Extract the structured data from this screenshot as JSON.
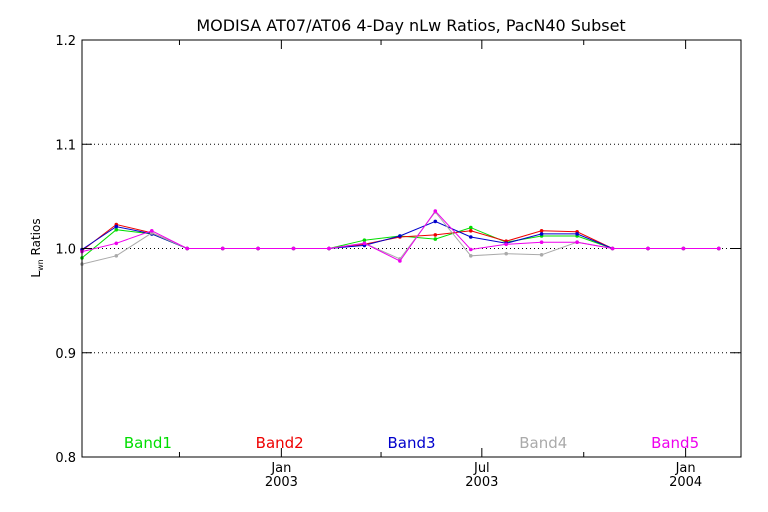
{
  "chart_data": {
    "type": "line",
    "title": "MODISA AT07/AT06 4-Day nLw Ratios, PacN40 Subset",
    "ylabel": {
      "main": "L",
      "sub": "wn",
      "rest": " Ratios"
    },
    "xlabel": "",
    "ylim": [
      0.8,
      1.2
    ],
    "xlim": [
      "2002-07-05",
      "2004-02-20"
    ],
    "yticks": [
      {
        "value": 0.8,
        "label": "0.8"
      },
      {
        "value": 0.9,
        "label": "0.9"
      },
      {
        "value": 1.0,
        "label": "1.0"
      },
      {
        "value": 1.1,
        "label": "1.1"
      },
      {
        "value": 1.2,
        "label": "1.2"
      }
    ],
    "y_gridlines": [
      0.9,
      1.0,
      1.1
    ],
    "x_major_ticks": [
      {
        "date": "2003-01-01",
        "label1": "Jan",
        "label2": "2003"
      },
      {
        "date": "2003-07-01",
        "label1": "Jul",
        "label2": "2003"
      },
      {
        "date": "2004-01-01",
        "label1": "Jan",
        "label2": "2004"
      }
    ],
    "x_minor_ticks": [
      "2002-10-01",
      "2003-04-01",
      "2003-10-01"
    ],
    "x": [
      "2002-07-04",
      "2002-08-05",
      "2002-09-06",
      "2002-10-08",
      "2002-11-09",
      "2002-12-11",
      "2003-01-12",
      "2003-02-13",
      "2003-03-17",
      "2003-04-18",
      "2003-05-20",
      "2003-06-21",
      "2003-07-23",
      "2003-08-24",
      "2003-09-25",
      "2003-10-27",
      "2003-11-28",
      "2003-12-30",
      "2004-01-31"
    ],
    "series": [
      {
        "name": "Band1",
        "color": "#00dd00",
        "values": [
          0.991,
          1.018,
          1.014,
          1.0,
          1.0,
          1.0,
          1.0,
          1.0,
          1.008,
          1.012,
          1.009,
          1.02,
          1.006,
          1.012,
          1.012,
          1.0,
          1.0,
          1.0,
          1.0
        ]
      },
      {
        "name": "Band2",
        "color": "#ee0000",
        "values": [
          0.998,
          1.023,
          1.015,
          1.0,
          1.0,
          1.0,
          1.0,
          1.0,
          1.004,
          1.011,
          1.013,
          1.017,
          1.007,
          1.017,
          1.016,
          1.0,
          1.0,
          1.0,
          1.0
        ]
      },
      {
        "name": "Band3",
        "color": "#0000cc",
        "values": [
          0.999,
          1.021,
          1.014,
          1.0,
          1.0,
          1.0,
          1.0,
          1.0,
          1.003,
          1.012,
          1.026,
          1.011,
          1.005,
          1.014,
          1.014,
          1.0,
          1.0,
          1.0,
          1.0
        ]
      },
      {
        "name": "Band4",
        "color": "#aaaaaa",
        "values": [
          0.985,
          0.993,
          1.015,
          1.0,
          1.0,
          1.0,
          1.0,
          1.0,
          1.005,
          0.99,
          1.035,
          0.993,
          0.995,
          0.994,
          1.006,
          1.0,
          1.0,
          1.0,
          1.0
        ]
      },
      {
        "name": "Band5",
        "color": "#ee00ee",
        "values": [
          0.997,
          1.005,
          1.017,
          1.0,
          1.0,
          1.0,
          1.0,
          1.0,
          1.005,
          0.988,
          1.036,
          0.999,
          1.004,
          1.006,
          1.006,
          1.0,
          1.0,
          1.0,
          1.0
        ]
      }
    ],
    "legend_placement": "bottom, horizontal inside plot",
    "grid": "horizontal dotted"
  }
}
